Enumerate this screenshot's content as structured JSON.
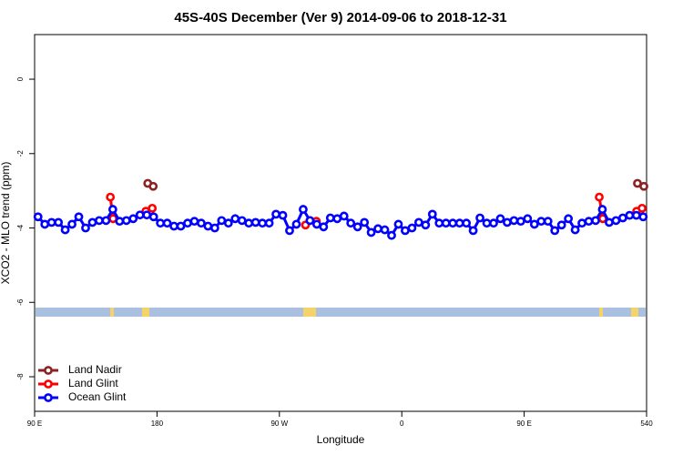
{
  "chart_data": {
    "type": "line",
    "title": "45S-40S December (Ver 9)   2014-09-06 to 2018-12-31",
    "x_label": "Longitude",
    "y_label": "XCO2 - MLO trend (ppm)",
    "xlim": [
      90,
      540
    ],
    "ylim": [
      -8.93,
      1.2
    ],
    "xticks": [
      {
        "value": 90,
        "label": "90 E"
      },
      180,
      {
        "value": 270,
        "label": "90 W"
      },
      {
        "value": 360,
        "label": "0"
      },
      {
        "value": 450,
        "label": "90 E"
      },
      540
    ],
    "yticks": [
      0,
      -2,
      -4,
      -6,
      -8
    ],
    "legend": "bottomleft",
    "series": [
      {
        "name": "Land Nadir",
        "color": "#8b2323",
        "x": [
          173.2,
          177.2,
          null,
          533.3,
          538
        ],
        "values": [
          -2.8,
          -2.88,
          null,
          -2.8,
          -2.88
        ]
      },
      {
        "name": "Land Glint",
        "color": "#ff0000",
        "x": [
          145.7,
          147.7,
          null,
          171.8,
          176.5,
          null,
          289.2,
          292.5,
          297.2,
          null,
          505.2,
          507.8,
          null,
          532.7,
          536.7
        ],
        "values": [
          -3.17,
          -3.75,
          null,
          -3.55,
          -3.47,
          null,
          -3.92,
          -3.8,
          -3.82,
          null,
          -3.17,
          -3.75,
          null,
          -3.55,
          -3.47
        ]
      },
      {
        "name": "Ocean Glint",
        "color": "#0000ff",
        "x": [
          92.5,
          97.5,
          102.5,
          107.5,
          112.5,
          117.5,
          122.5,
          127.5,
          132.5,
          137.5,
          142.5,
          147.5,
          152.5,
          157.5,
          162.5,
          167.5,
          172.5,
          177.5,
          182.5,
          187.5,
          192.5,
          197.5,
          202.5,
          207.5,
          212.5,
          217.5,
          222.5,
          227.5,
          232.5,
          237.5,
          242.5,
          247.5,
          252.5,
          257.5,
          262.5,
          267.5,
          272.5,
          277.5,
          282.5,
          287.5,
          292.5,
          297.5,
          302.5,
          307.5,
          312.5,
          317.5,
          322.5,
          327.5,
          332.5,
          337.5,
          342.5,
          347.5,
          352.5,
          357.5,
          362.5,
          367.5,
          372.5,
          377.5,
          382.5,
          387.5,
          392.5,
          397.5,
          402.5,
          407.5,
          412.5,
          417.5,
          422.5,
          427.5,
          432.5,
          437.5,
          442.5,
          447.5,
          452.5,
          457.5,
          462.5,
          467.5,
          472.5,
          477.5,
          482.5,
          487.5,
          492.5,
          497.5,
          502.5,
          507.5,
          512.5,
          517.5,
          522.5,
          527.5,
          532.5,
          537.5
        ],
        "values": [
          -3.7,
          -3.9,
          -3.85,
          -3.85,
          -4.05,
          -3.9,
          -3.7,
          -4.0,
          -3.85,
          -3.8,
          -3.8,
          -3.5,
          -3.82,
          -3.8,
          -3.75,
          -3.65,
          -3.65,
          -3.7,
          -3.87,
          -3.87,
          -3.95,
          -3.95,
          -3.87,
          -3.82,
          -3.87,
          -3.95,
          -4.0,
          -3.8,
          -3.87,
          -3.75,
          -3.8,
          -3.87,
          -3.85,
          -3.87,
          -3.87,
          -3.63,
          -3.66,
          -4.07,
          -3.9,
          -3.5,
          -3.8,
          -3.9,
          -3.97,
          -3.73,
          -3.75,
          -3.68,
          -3.87,
          -3.97,
          -3.85,
          -4.12,
          -4.02,
          -4.05,
          -4.2,
          -3.9,
          -4.07,
          -4.0,
          -3.85,
          -3.92,
          -3.63,
          -3.87,
          -3.87,
          -3.87,
          -3.87,
          -3.87,
          -4.07,
          -3.73,
          -3.87,
          -3.87,
          -3.75,
          -3.85,
          -3.8,
          -3.82,
          -3.75,
          -3.9,
          -3.82,
          -3.82,
          -4.07,
          -3.92,
          -3.75,
          -4.05,
          -3.87,
          -3.82,
          -3.8,
          -3.5,
          -3.85,
          -3.8,
          -3.73,
          -3.66,
          -3.66,
          -3.7
        ]
      }
    ]
  }
}
